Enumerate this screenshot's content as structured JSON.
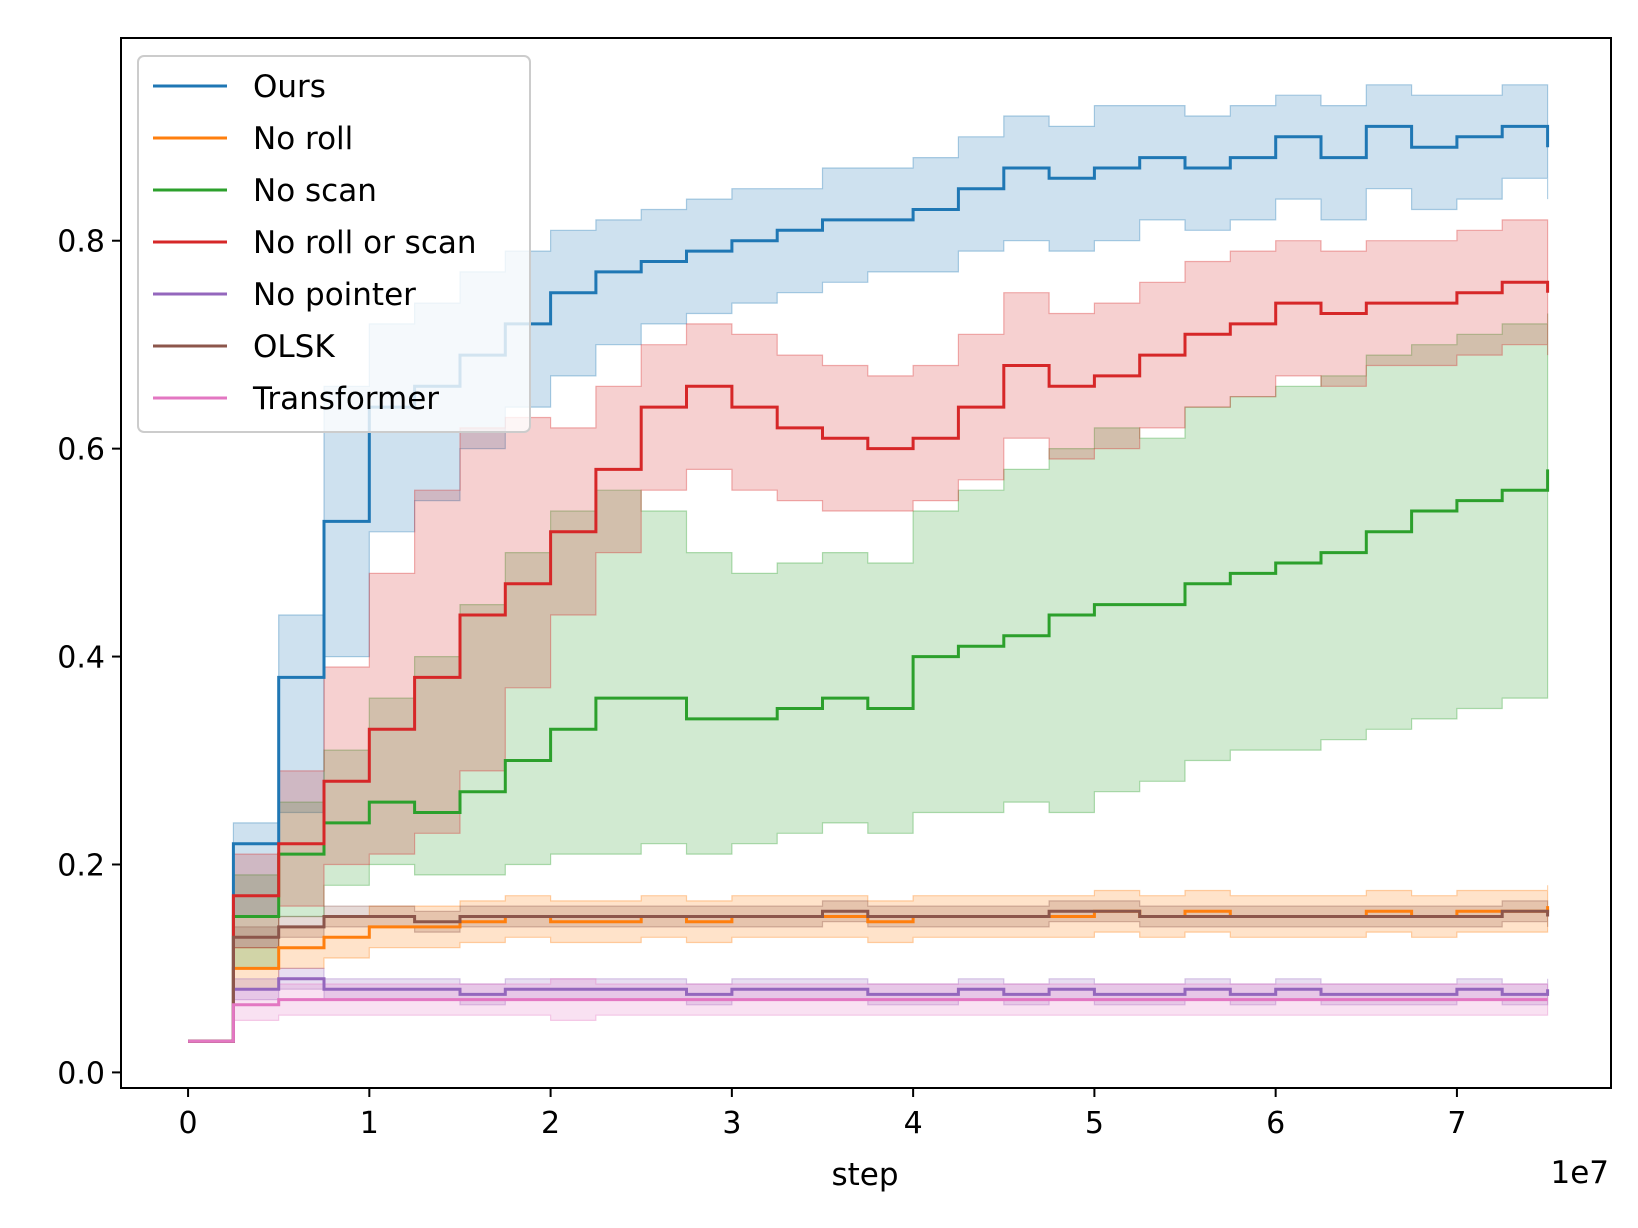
{
  "chart_data": {
    "type": "line",
    "title": "",
    "xlabel": "step",
    "ylabel": "",
    "x_offset_label": "1e7",
    "xlim": [
      -0.37,
      7.85
    ],
    "ylim": [
      -0.015,
      0.995
    ],
    "x_ticks": [
      0,
      1,
      2,
      3,
      4,
      5,
      6,
      7
    ],
    "x_tick_labels": [
      "0",
      "1",
      "2",
      "3",
      "4",
      "5",
      "6",
      "7"
    ],
    "y_ticks": [
      0.0,
      0.2,
      0.4,
      0.6,
      0.8
    ],
    "y_tick_labels": [
      "0.0",
      "0.2",
      "0.4",
      "0.6",
      "0.8"
    ],
    "grid": false,
    "legend_position": "upper-left",
    "x": [
      0,
      0.25,
      0.5,
      0.75,
      1,
      1.25,
      1.5,
      1.75,
      2,
      2.25,
      2.5,
      2.75,
      3,
      3.25,
      3.5,
      3.75,
      4,
      4.25,
      4.5,
      4.75,
      5,
      5.25,
      5.5,
      5.75,
      6,
      6.25,
      6.5,
      6.75,
      7,
      7.25,
      7.5
    ],
    "series": [
      {
        "name": "Ours",
        "color": "#1f77b4",
        "values": [
          0.03,
          0.22,
          0.38,
          0.53,
          0.64,
          0.66,
          0.69,
          0.72,
          0.75,
          0.77,
          0.78,
          0.79,
          0.8,
          0.81,
          0.82,
          0.82,
          0.83,
          0.85,
          0.87,
          0.86,
          0.87,
          0.88,
          0.87,
          0.88,
          0.9,
          0.88,
          0.91,
          0.89,
          0.9,
          0.91,
          0.89
        ],
        "band_low": [
          0.03,
          0.15,
          0.25,
          0.4,
          0.52,
          0.55,
          0.6,
          0.64,
          0.67,
          0.7,
          0.72,
          0.73,
          0.74,
          0.75,
          0.76,
          0.77,
          0.77,
          0.79,
          0.8,
          0.79,
          0.8,
          0.82,
          0.81,
          0.82,
          0.84,
          0.82,
          0.85,
          0.83,
          0.84,
          0.86,
          0.84
        ],
        "band_high": [
          0.03,
          0.24,
          0.44,
          0.66,
          0.72,
          0.74,
          0.77,
          0.79,
          0.81,
          0.82,
          0.83,
          0.84,
          0.85,
          0.85,
          0.87,
          0.87,
          0.88,
          0.9,
          0.92,
          0.91,
          0.93,
          0.93,
          0.92,
          0.93,
          0.94,
          0.93,
          0.95,
          0.94,
          0.94,
          0.95,
          0.93
        ]
      },
      {
        "name": "No roll",
        "color": "#ff7f0e",
        "values": [
          0.03,
          0.1,
          0.12,
          0.13,
          0.14,
          0.14,
          0.145,
          0.15,
          0.145,
          0.145,
          0.15,
          0.145,
          0.15,
          0.15,
          0.15,
          0.145,
          0.15,
          0.15,
          0.15,
          0.15,
          0.155,
          0.15,
          0.155,
          0.15,
          0.15,
          0.15,
          0.155,
          0.15,
          0.155,
          0.155,
          0.16
        ],
        "band_low": [
          0.03,
          0.08,
          0.1,
          0.11,
          0.12,
          0.12,
          0.125,
          0.13,
          0.125,
          0.125,
          0.13,
          0.125,
          0.13,
          0.13,
          0.13,
          0.125,
          0.13,
          0.13,
          0.13,
          0.13,
          0.135,
          0.13,
          0.135,
          0.13,
          0.13,
          0.13,
          0.135,
          0.13,
          0.135,
          0.135,
          0.14
        ],
        "band_high": [
          0.03,
          0.12,
          0.14,
          0.15,
          0.16,
          0.16,
          0.165,
          0.17,
          0.165,
          0.165,
          0.17,
          0.165,
          0.17,
          0.17,
          0.17,
          0.165,
          0.17,
          0.17,
          0.17,
          0.17,
          0.175,
          0.17,
          0.175,
          0.17,
          0.17,
          0.17,
          0.175,
          0.17,
          0.175,
          0.175,
          0.18
        ]
      },
      {
        "name": "No scan",
        "color": "#2ca02c",
        "values": [
          0.03,
          0.15,
          0.21,
          0.24,
          0.26,
          0.25,
          0.27,
          0.3,
          0.33,
          0.36,
          0.36,
          0.34,
          0.34,
          0.35,
          0.36,
          0.35,
          0.4,
          0.41,
          0.42,
          0.44,
          0.45,
          0.45,
          0.47,
          0.48,
          0.49,
          0.5,
          0.52,
          0.54,
          0.55,
          0.56,
          0.58
        ],
        "band_low": [
          0.03,
          0.1,
          0.15,
          0.18,
          0.2,
          0.19,
          0.19,
          0.2,
          0.21,
          0.21,
          0.22,
          0.21,
          0.22,
          0.23,
          0.24,
          0.23,
          0.25,
          0.25,
          0.26,
          0.25,
          0.27,
          0.28,
          0.3,
          0.31,
          0.31,
          0.32,
          0.33,
          0.34,
          0.35,
          0.36,
          0.37
        ],
        "band_high": [
          0.03,
          0.19,
          0.26,
          0.31,
          0.36,
          0.4,
          0.45,
          0.5,
          0.54,
          0.56,
          0.54,
          0.5,
          0.48,
          0.49,
          0.5,
          0.49,
          0.54,
          0.56,
          0.58,
          0.6,
          0.62,
          0.61,
          0.64,
          0.65,
          0.66,
          0.67,
          0.69,
          0.7,
          0.71,
          0.72,
          0.73
        ]
      },
      {
        "name": "No roll or scan",
        "color": "#d62728",
        "values": [
          0.03,
          0.17,
          0.22,
          0.28,
          0.33,
          0.38,
          0.44,
          0.47,
          0.52,
          0.58,
          0.64,
          0.66,
          0.64,
          0.62,
          0.61,
          0.6,
          0.61,
          0.64,
          0.68,
          0.66,
          0.67,
          0.69,
          0.71,
          0.72,
          0.74,
          0.73,
          0.74,
          0.74,
          0.75,
          0.76,
          0.75
        ],
        "band_low": [
          0.03,
          0.12,
          0.16,
          0.2,
          0.21,
          0.23,
          0.29,
          0.37,
          0.44,
          0.5,
          0.56,
          0.58,
          0.56,
          0.55,
          0.54,
          0.54,
          0.55,
          0.57,
          0.61,
          0.59,
          0.6,
          0.62,
          0.64,
          0.65,
          0.67,
          0.66,
          0.68,
          0.68,
          0.69,
          0.7,
          0.69
        ],
        "band_high": [
          0.03,
          0.21,
          0.29,
          0.39,
          0.48,
          0.56,
          0.62,
          0.63,
          0.62,
          0.66,
          0.7,
          0.72,
          0.71,
          0.69,
          0.68,
          0.67,
          0.68,
          0.71,
          0.75,
          0.73,
          0.74,
          0.76,
          0.78,
          0.79,
          0.8,
          0.79,
          0.8,
          0.8,
          0.81,
          0.82,
          0.81
        ]
      },
      {
        "name": "No pointer",
        "color": "#9467bd",
        "values": [
          0.03,
          0.08,
          0.09,
          0.08,
          0.08,
          0.08,
          0.075,
          0.08,
          0.08,
          0.08,
          0.08,
          0.075,
          0.08,
          0.08,
          0.08,
          0.075,
          0.075,
          0.08,
          0.075,
          0.08,
          0.075,
          0.075,
          0.08,
          0.075,
          0.08,
          0.075,
          0.075,
          0.075,
          0.08,
          0.075,
          0.08
        ],
        "band_low": [
          0.03,
          0.07,
          0.08,
          0.07,
          0.07,
          0.07,
          0.065,
          0.07,
          0.07,
          0.07,
          0.07,
          0.065,
          0.07,
          0.07,
          0.07,
          0.065,
          0.065,
          0.07,
          0.065,
          0.07,
          0.065,
          0.065,
          0.07,
          0.065,
          0.07,
          0.065,
          0.065,
          0.065,
          0.07,
          0.065,
          0.07
        ],
        "band_high": [
          0.03,
          0.09,
          0.1,
          0.09,
          0.09,
          0.09,
          0.085,
          0.09,
          0.09,
          0.09,
          0.09,
          0.085,
          0.09,
          0.09,
          0.09,
          0.085,
          0.085,
          0.09,
          0.085,
          0.09,
          0.085,
          0.085,
          0.09,
          0.085,
          0.09,
          0.085,
          0.085,
          0.085,
          0.09,
          0.085,
          0.09
        ]
      },
      {
        "name": "OLSK",
        "color": "#8c564b",
        "values": [
          0.03,
          0.13,
          0.14,
          0.15,
          0.15,
          0.145,
          0.15,
          0.15,
          0.15,
          0.15,
          0.15,
          0.15,
          0.15,
          0.15,
          0.155,
          0.15,
          0.15,
          0.15,
          0.15,
          0.155,
          0.155,
          0.15,
          0.15,
          0.15,
          0.15,
          0.15,
          0.15,
          0.15,
          0.15,
          0.155,
          0.15
        ],
        "band_low": [
          0.03,
          0.12,
          0.13,
          0.14,
          0.14,
          0.135,
          0.14,
          0.14,
          0.14,
          0.14,
          0.14,
          0.14,
          0.14,
          0.14,
          0.145,
          0.14,
          0.14,
          0.14,
          0.14,
          0.145,
          0.145,
          0.14,
          0.14,
          0.14,
          0.14,
          0.14,
          0.14,
          0.14,
          0.14,
          0.145,
          0.14
        ],
        "band_high": [
          0.03,
          0.14,
          0.15,
          0.16,
          0.16,
          0.155,
          0.16,
          0.16,
          0.16,
          0.16,
          0.16,
          0.16,
          0.16,
          0.16,
          0.165,
          0.16,
          0.16,
          0.16,
          0.16,
          0.165,
          0.165,
          0.16,
          0.16,
          0.16,
          0.16,
          0.16,
          0.16,
          0.16,
          0.16,
          0.165,
          0.16
        ]
      },
      {
        "name": "Transformer",
        "color": "#e377c2",
        "values": [
          0.03,
          0.065,
          0.07,
          0.07,
          0.07,
          0.07,
          0.07,
          0.07,
          0.07,
          0.07,
          0.07,
          0.07,
          0.07,
          0.07,
          0.07,
          0.07,
          0.07,
          0.07,
          0.07,
          0.07,
          0.07,
          0.07,
          0.07,
          0.07,
          0.07,
          0.07,
          0.07,
          0.07,
          0.07,
          0.07,
          0.07
        ],
        "band_low": [
          0.03,
          0.05,
          0.055,
          0.055,
          0.055,
          0.055,
          0.055,
          0.055,
          0.05,
          0.055,
          0.055,
          0.055,
          0.055,
          0.055,
          0.055,
          0.055,
          0.055,
          0.055,
          0.055,
          0.055,
          0.055,
          0.055,
          0.055,
          0.055,
          0.055,
          0.055,
          0.055,
          0.055,
          0.055,
          0.055,
          0.055
        ],
        "band_high": [
          0.03,
          0.08,
          0.085,
          0.085,
          0.085,
          0.085,
          0.085,
          0.085,
          0.09,
          0.085,
          0.085,
          0.085,
          0.085,
          0.085,
          0.085,
          0.085,
          0.085,
          0.085,
          0.085,
          0.085,
          0.085,
          0.085,
          0.085,
          0.085,
          0.085,
          0.085,
          0.085,
          0.085,
          0.085,
          0.085,
          0.085
        ]
      }
    ]
  }
}
